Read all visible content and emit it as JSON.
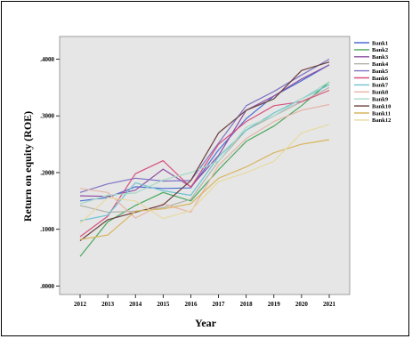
{
  "chart_data": {
    "type": "line",
    "title": "",
    "xlabel": "Year",
    "ylabel": "Return on equity (ROE)",
    "x": [
      2012,
      2013,
      2014,
      2015,
      2016,
      2017,
      2018,
      2019,
      2020,
      2021
    ],
    "x_tick_labels": [
      "2012",
      "2013",
      "2014",
      "2015",
      "2016",
      "2017",
      "2018",
      "2019",
      "2020",
      "2021"
    ],
    "y_ticks": [
      0,
      1000,
      2000,
      3000,
      4000
    ],
    "y_tick_labels": [
      ".0000",
      ".1000",
      ".2000",
      ".3000",
      ".4000"
    ],
    "ylim": [
      -150,
      4400
    ],
    "grid": false,
    "legend_position": "right",
    "series": [
      {
        "name": "Bank1",
        "color": "#4a6fd6",
        "values": [
          1500,
          1560,
          1750,
          1720,
          1730,
          2400,
          2950,
          3350,
          3620,
          3900
        ]
      },
      {
        "name": "Bank2",
        "color": "#49a85c",
        "values": [
          520,
          1130,
          1420,
          1650,
          1500,
          2050,
          2550,
          2820,
          3180,
          3600
        ]
      },
      {
        "name": "Bank3",
        "color": "#8f4fa3",
        "values": [
          1590,
          1580,
          1690,
          2060,
          1750,
          2300,
          3100,
          3350,
          3650,
          3900
        ]
      },
      {
        "name": "Bank4",
        "color": "#b2b2a8",
        "values": [
          1420,
          1300,
          1320,
          1380,
          1530,
          2200,
          2750,
          3000,
          3250,
          3500
        ]
      },
      {
        "name": "Bank5",
        "color": "#7e73c4",
        "values": [
          1650,
          1800,
          1900,
          1850,
          1860,
          2520,
          3180,
          3430,
          3720,
          4000
        ]
      },
      {
        "name": "Bank6",
        "color": "#d84f7f",
        "values": [
          870,
          1230,
          1980,
          2210,
          1740,
          2500,
          2900,
          3180,
          3250,
          3450
        ]
      },
      {
        "name": "Bank7",
        "color": "#6dc2cf",
        "values": [
          1150,
          1250,
          1820,
          1680,
          1600,
          2280,
          2750,
          3050,
          3300,
          3550
        ]
      },
      {
        "name": "Bank8",
        "color": "#e7b4a8",
        "values": [
          1720,
          1650,
          1200,
          1450,
          1300,
          2130,
          2600,
          2900,
          3100,
          3200
        ]
      },
      {
        "name": "Bank9",
        "color": "#a6d9c7",
        "values": [
          1450,
          1600,
          1640,
          1870,
          2000,
          2200,
          2800,
          3000,
          3300,
          3600
        ]
      },
      {
        "name": "Bank10",
        "color": "#6b3f3f",
        "values": [
          800,
          1170,
          1300,
          1430,
          1860,
          2700,
          3100,
          3300,
          3800,
          3950
        ]
      },
      {
        "name": "Bank11",
        "color": "#d9b65e",
        "values": [
          820,
          900,
          1320,
          1360,
          1450,
          1900,
          2100,
          2350,
          2500,
          2580
        ]
      },
      {
        "name": "Bank12",
        "color": "#e8d9a0",
        "values": [
          1100,
          1560,
          1500,
          1190,
          1330,
          1840,
          2000,
          2200,
          2700,
          2850
        ]
      }
    ]
  }
}
